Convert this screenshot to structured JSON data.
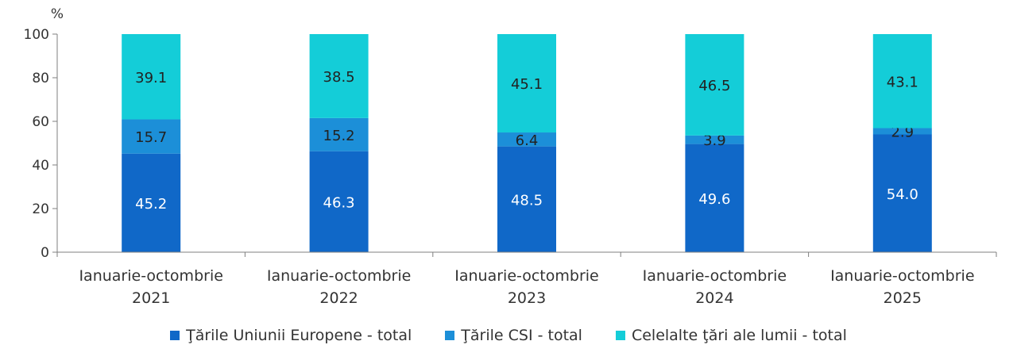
{
  "chart_data": {
    "type": "bar",
    "stacked": true,
    "title": "",
    "xlabel": "",
    "ylabel": "%",
    "ylim": [
      0,
      100
    ],
    "yticks": [
      "0",
      "20",
      "40",
      "60",
      "80",
      "100"
    ],
    "grid": false,
    "legend_position": "bottom",
    "categories": [
      [
        "Ianuarie-octombrie",
        "2021"
      ],
      [
        "Ianuarie-octombrie",
        "2022"
      ],
      [
        "Ianuarie-octombrie",
        "2023"
      ],
      [
        "Ianuarie-octombrie",
        "2024"
      ],
      [
        "Ianuarie-octombrie",
        "2025"
      ]
    ],
    "series": [
      {
        "name": "Ţările Uniunii Europene - total",
        "color": "#1068C8",
        "label_color": "#ffffff",
        "values": [
          45.2,
          46.3,
          48.5,
          49.6,
          54.0
        ],
        "labels": [
          "45.2",
          "46.3",
          "48.5",
          "49.6",
          "54.0"
        ]
      },
      {
        "name": "Ţările CSI - total",
        "color": "#1C8FD8",
        "label_color": "#222222",
        "values": [
          15.7,
          15.2,
          6.4,
          3.9,
          2.9
        ],
        "labels": [
          "15.7",
          "15.2",
          "6.4",
          "3.9",
          "2.9"
        ]
      },
      {
        "name": "Celelalte ţări ale lumii - total",
        "color": "#14CDD8",
        "label_color": "#222222",
        "values": [
          39.1,
          38.5,
          45.1,
          46.5,
          43.1
        ],
        "labels": [
          "39.1",
          "38.5",
          "45.1",
          "46.5",
          "43.1"
        ]
      }
    ]
  }
}
